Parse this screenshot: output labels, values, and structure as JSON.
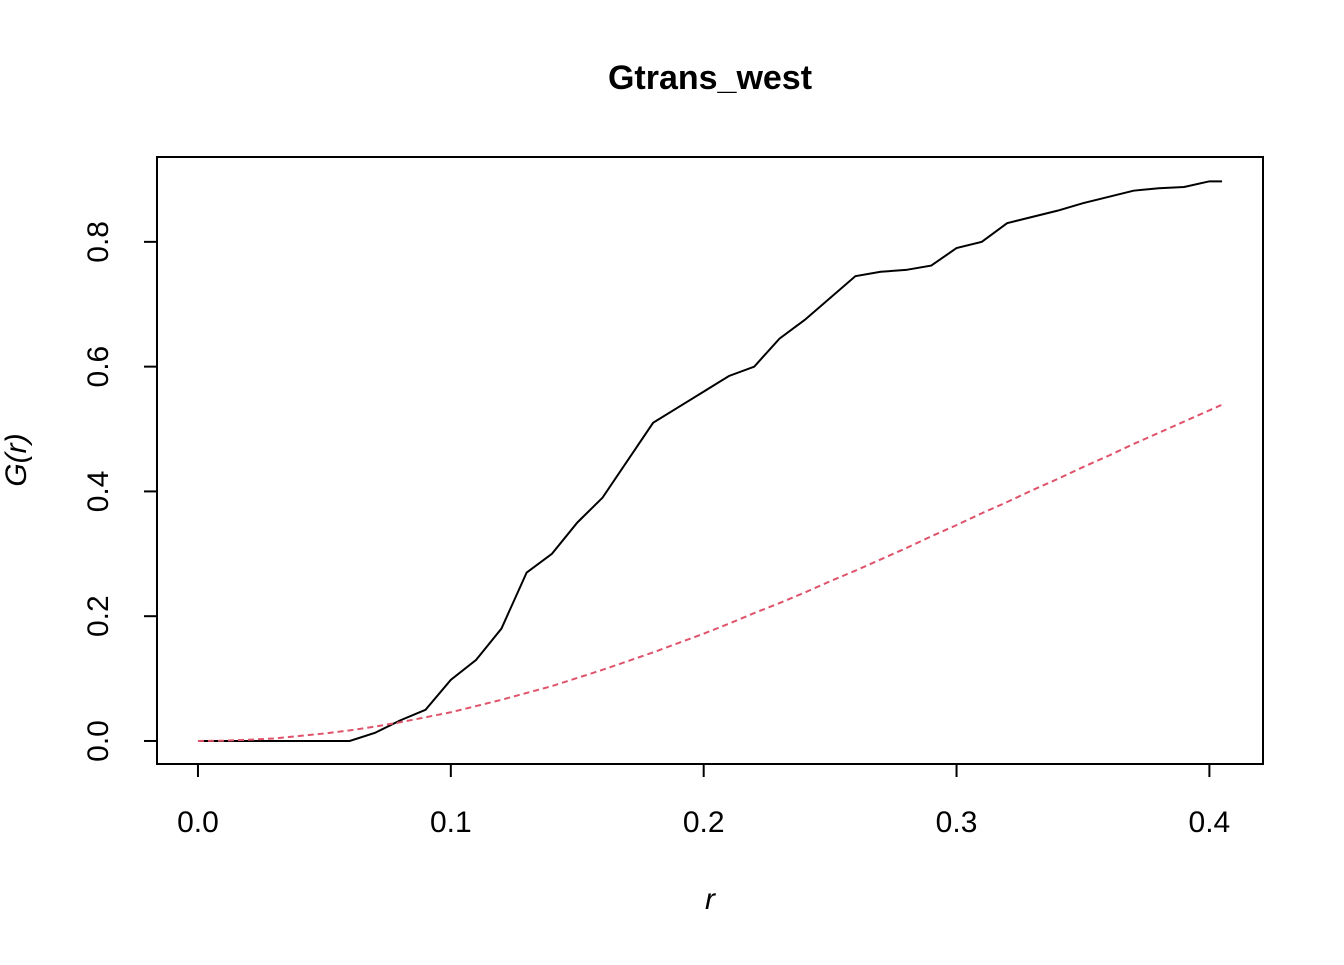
{
  "chart_data": {
    "type": "line",
    "title": "Gtrans_west",
    "xlabel": "r",
    "ylabel": "G(r)",
    "x": [
      0,
      0.01,
      0.02,
      0.03,
      0.04,
      0.05,
      0.06,
      0.07,
      0.08,
      0.09,
      0.1,
      0.11,
      0.12,
      0.13,
      0.14,
      0.15,
      0.16,
      0.17,
      0.18,
      0.19,
      0.2,
      0.21,
      0.22,
      0.23,
      0.24,
      0.25,
      0.26,
      0.27,
      0.28,
      0.29,
      0.3,
      0.31,
      0.32,
      0.33,
      0.34,
      0.35,
      0.36,
      0.37,
      0.38,
      0.39,
      0.4,
      0.405
    ],
    "series": [
      {
        "color": "#000000",
        "dash": "none",
        "values": [
          0,
          0,
          0,
          0,
          0,
          0,
          0,
          0.013,
          0.033,
          0.05,
          0.098,
          0.13,
          0.18,
          0.27,
          0.3,
          0.35,
          0.39,
          0.45,
          0.51,
          0.535,
          0.56,
          0.585,
          0.6,
          0.645,
          0.675,
          0.71,
          0.745,
          0.752,
          0.755,
          0.762,
          0.79,
          0.8,
          0.83,
          0.84,
          0.85,
          0.862,
          0.872,
          0.882,
          0.886,
          0.888,
          0.897,
          0.897
        ]
      },
      {
        "color": "#df536b",
        "dash": "6 4",
        "values": [
          0,
          0.0005,
          0.002,
          0.004,
          0.008,
          0.012,
          0.017,
          0.023,
          0.03,
          0.038,
          0.046,
          0.056,
          0.066,
          0.077,
          0.088,
          0.101,
          0.114,
          0.128,
          0.142,
          0.157,
          0.172,
          0.188,
          0.205,
          0.221,
          0.238,
          0.256,
          0.273,
          0.291,
          0.309,
          0.328,
          0.346,
          0.365,
          0.383,
          0.402,
          0.42,
          0.439,
          0.457,
          0.476,
          0.494,
          0.512,
          0.53,
          0.539
        ]
      }
    ],
    "xlim": [
      -0.0162,
      0.4212
    ],
    "ylim": [
      -0.0369,
      0.936
    ],
    "xticks": [
      {
        "value": 0,
        "label": "0.0"
      },
      0.1,
      0.2,
      0.3,
      0.4
    ],
    "yticks": [
      {
        "value": 0,
        "label": "0.0"
      },
      0.2,
      0.4,
      0.6,
      0.8
    ]
  }
}
